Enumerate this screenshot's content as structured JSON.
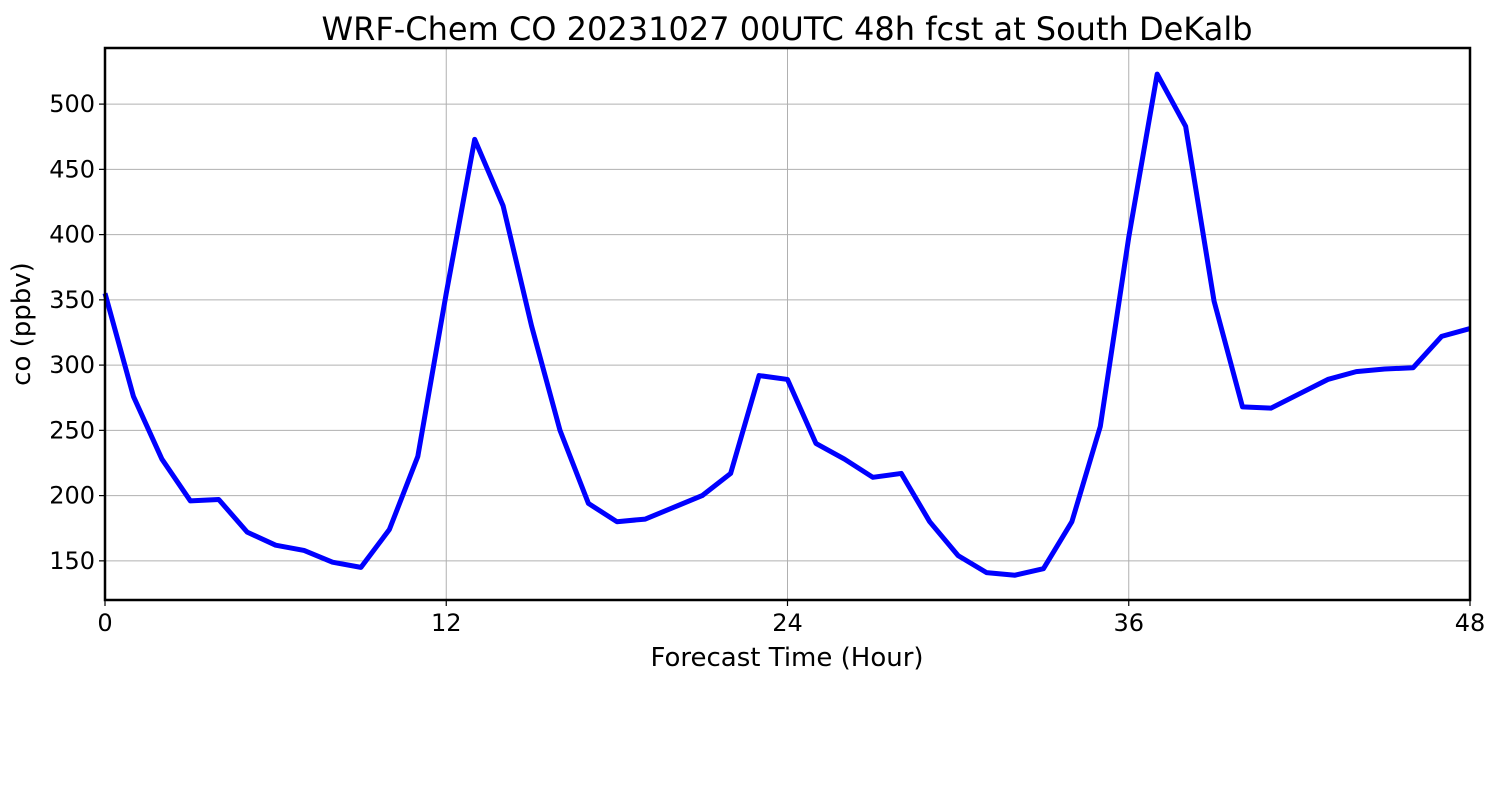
{
  "chart_data": {
    "type": "line",
    "title": "WRF-Chem CO  20231027 00UTC 48h fcst at South DeKalb",
    "xlabel": "Forecast Time (Hour)",
    "ylabel": "co  (ppbv)",
    "xlim": [
      0,
      48
    ],
    "ylim": [
      120,
      543
    ],
    "xticks": [
      0,
      12,
      24,
      36,
      48
    ],
    "yticks": [
      150,
      200,
      250,
      300,
      350,
      400,
      450,
      500
    ],
    "grid": true,
    "series": [
      {
        "color": "#0000ff",
        "x": [
          0,
          1,
          2,
          3,
          4,
          5,
          6,
          7,
          8,
          9,
          10,
          11,
          12,
          13,
          14,
          15,
          16,
          17,
          18,
          19,
          20,
          21,
          22,
          23,
          24,
          25,
          26,
          27,
          28,
          29,
          30,
          31,
          32,
          33,
          34,
          35,
          36,
          37,
          38,
          39,
          40,
          41,
          42,
          43,
          44,
          45,
          46,
          47,
          48
        ],
        "values": [
          355,
          276,
          228,
          196,
          197,
          172,
          162,
          158,
          149,
          145,
          174,
          230,
          355,
          473,
          422,
          330,
          250,
          194,
          180,
          182,
          191,
          200,
          217,
          292,
          289,
          240,
          228,
          214,
          217,
          180,
          154,
          141,
          139,
          144,
          180,
          253,
          398,
          523,
          483,
          349,
          268,
          267,
          278,
          289,
          295,
          297,
          298,
          322,
          328
        ]
      }
    ]
  }
}
